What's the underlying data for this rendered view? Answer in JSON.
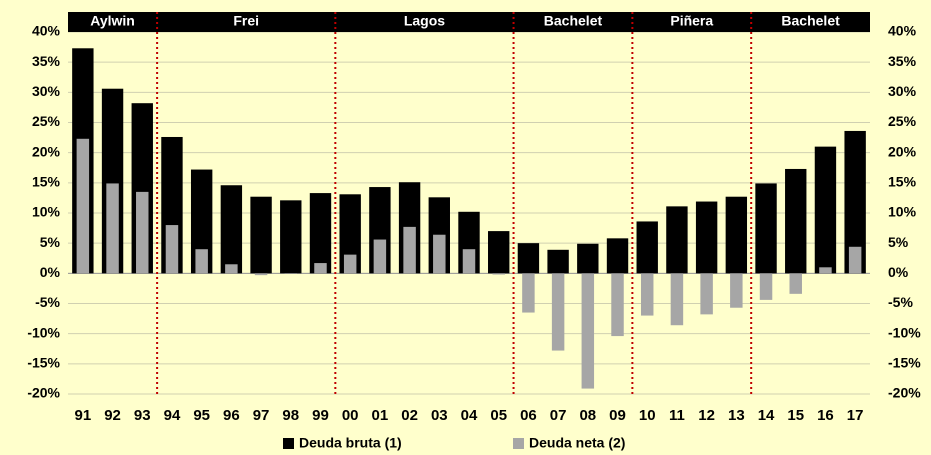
{
  "chart_data": {
    "type": "bar",
    "categories": [
      "91",
      "92",
      "93",
      "94",
      "95",
      "96",
      "97",
      "98",
      "99",
      "00",
      "01",
      "02",
      "03",
      "04",
      "05",
      "06",
      "07",
      "08",
      "09",
      "10",
      "11",
      "12",
      "13",
      "14",
      "15",
      "16",
      "17"
    ],
    "series": [
      {
        "name": "Deuda bruta (1)",
        "color": "#000000",
        "values": [
          37.3,
          30.6,
          28.2,
          22.6,
          17.2,
          14.6,
          12.7,
          12.1,
          13.3,
          13.1,
          14.3,
          15.1,
          12.6,
          10.2,
          7.0,
          5.0,
          3.9,
          4.9,
          5.8,
          8.6,
          11.1,
          11.9,
          12.7,
          14.9,
          17.3,
          21.0,
          23.6
        ]
      },
      {
        "name": "Deuda neta (2)",
        "color": "#a6a6a6",
        "values": [
          22.3,
          14.9,
          13.5,
          8.0,
          4.0,
          1.5,
          -0.3,
          -0.1,
          1.7,
          3.1,
          5.6,
          7.7,
          6.4,
          4.0,
          -0.2,
          -6.5,
          -12.8,
          -19.1,
          -10.4,
          -7.0,
          -8.6,
          -6.8,
          -5.7,
          -4.4,
          -3.4,
          1.0,
          4.4
        ]
      }
    ],
    "ylim": [
      -20,
      40
    ],
    "yticks": [
      {
        "value": -20,
        "label": "-20%"
      },
      {
        "value": -15,
        "label": "-15%"
      },
      {
        "value": -10,
        "label": "-10%"
      },
      {
        "value": -5,
        "label": "-5%"
      },
      {
        "value": 0,
        "label": "0%"
      },
      {
        "value": 5,
        "label": "5%"
      },
      {
        "value": 10,
        "label": "10%"
      },
      {
        "value": 15,
        "label": "15%"
      },
      {
        "value": 20,
        "label": "20%"
      },
      {
        "value": 25,
        "label": "25%"
      },
      {
        "value": 30,
        "label": "30%"
      },
      {
        "value": 35,
        "label": "35%"
      },
      {
        "value": 40,
        "label": "40%"
      }
    ],
    "y2lim": [
      -20,
      40
    ],
    "y2ticks": [
      {
        "value": -20,
        "label": "-20%"
      },
      {
        "value": -15,
        "label": "-15%"
      },
      {
        "value": -10,
        "label": "-10%"
      },
      {
        "value": -5,
        "label": "-5%"
      },
      {
        "value": 0,
        "label": "0%"
      },
      {
        "value": 5,
        "label": "5%"
      },
      {
        "value": 10,
        "label": "10%"
      },
      {
        "value": 15,
        "label": "15%"
      },
      {
        "value": 20,
        "label": "20%"
      },
      {
        "value": 25,
        "label": "25%"
      },
      {
        "value": 30,
        "label": "30%"
      },
      {
        "value": 35,
        "label": "35%"
      },
      {
        "value": 40,
        "label": "40%"
      }
    ],
    "grid": true,
    "periods": [
      {
        "label": "Aylwin",
        "start": "91",
        "end": "93"
      },
      {
        "label": "Frei",
        "start": "94",
        "end": "99"
      },
      {
        "label": "Lagos",
        "start": "00",
        "end": "05"
      },
      {
        "label": "Bachelet",
        "start": "06",
        "end": "09"
      },
      {
        "label": "Piñera",
        "start": "10",
        "end": "13"
      },
      {
        "label": "Bachelet",
        "start": "14",
        "end": "17"
      }
    ]
  }
}
